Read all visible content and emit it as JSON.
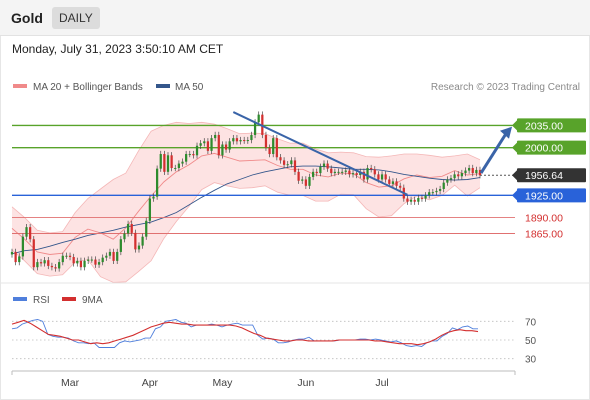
{
  "header": {
    "title": "Gold",
    "period_badge": "DAILY"
  },
  "timestamp": "Monday, July 31, 2023 3:50:10 AM CET",
  "colors": {
    "bollinger": "#f08a8a",
    "bollinger_fill": "#fde3e3",
    "ma50": "#34568b",
    "resistance": "#58a32a",
    "support": "#2962d9",
    "pivot": "#333333",
    "support_thin": "#e07070",
    "candle_up": "#2e8b2e",
    "candle_down": "#d32f2f",
    "rsi": "#4f7fdc",
    "rsi_ma": "#d32f2f",
    "arrow": "#3a64a8"
  },
  "chart_data": [
    {
      "type": "candlestick",
      "title": "Gold",
      "period": "DAILY",
      "legend": [
        {
          "label": "MA 20 + Bollinger Bands",
          "color": "#f08a8a"
        },
        {
          "label": "MA 50",
          "color": "#34568b"
        }
      ],
      "legend_position": "top-left",
      "credit": "Research © 2023 Trading Central",
      "x_ticks": [
        {
          "label": "Mar",
          "index": 16
        },
        {
          "label": "Apr",
          "index": 38
        },
        {
          "label": "May",
          "index": 58
        },
        {
          "label": "Jun",
          "index": 81
        },
        {
          "label": "Jul",
          "index": 102
        }
      ],
      "ylim": [
        1795,
        2075
      ],
      "close": [
        1836,
        1820,
        1829,
        1860,
        1875,
        1856,
        1812,
        1820,
        1818,
        1823,
        1814,
        1812,
        1810,
        1820,
        1830,
        1830,
        1828,
        1818,
        1822,
        1812,
        1822,
        1824,
        1824,
        1816,
        1820,
        1827,
        1830,
        1836,
        1822,
        1836,
        1856,
        1865,
        1880,
        1866,
        1840,
        1846,
        1860,
        1885,
        1920,
        1923,
        1967,
        1990,
        1962,
        1988,
        1968,
        1968,
        1975,
        1978,
        1990,
        1990,
        1988,
        2003,
        2007,
        2010,
        1995,
        2015,
        2020,
        1988,
        2005,
        1997,
        2010,
        2015,
        2010,
        2012,
        2011,
        2012,
        2020,
        2040,
        2052,
        2020,
        2000,
        1990,
        2015,
        1985,
        1980,
        1973,
        1974,
        1980,
        1962,
        1948,
        1950,
        1940,
        1954,
        1962,
        1960,
        1970,
        1975,
        1967,
        1960,
        1962,
        1962,
        1962,
        1964,
        1958,
        1960,
        1957,
        1962,
        1950,
        1968,
        1966,
        1958,
        1950,
        1958,
        1950,
        1943,
        1947,
        1940,
        1937,
        1920,
        1915,
        1918,
        1915,
        1921,
        1920,
        1925,
        1930,
        1930,
        1932,
        1935,
        1945,
        1950,
        1952,
        1958,
        1955,
        1960,
        1964,
        1968,
        1960,
        1965,
        1956.64
      ],
      "series": [
        {
          "name": "MA 20 + Bollinger Bands",
          "mid": [
            1873,
            1856,
            1836,
            1832,
            1834,
            1859,
            1872,
            1866,
            1856,
            1874,
            1900,
            1924,
            1946,
            1962,
            1973,
            1987,
            1991,
            1985,
            1979,
            1980,
            1981,
            1972,
            1966,
            1966,
            1957,
            1954,
            1960,
            1959,
            1945,
            1938,
            1940,
            1951,
            1957,
            1953,
            1955,
            1964,
            1957,
            1959
          ],
          "upper": [
            1907,
            1890,
            1870,
            1866,
            1868,
            1898,
            1920,
            1935,
            1950,
            1960,
            1995,
            2026,
            2035,
            2040,
            2038,
            2040,
            2037,
            2030,
            2022,
            2023,
            2022,
            2014,
            2007,
            2007,
            1998,
            1992,
            1993,
            1992,
            1986,
            1985,
            1987,
            1990,
            1990,
            1988,
            1985,
            1987,
            1990,
            1981
          ],
          "lower": [
            1839,
            1822,
            1802,
            1798,
            1800,
            1820,
            1824,
            1797,
            1788,
            1789,
            1805,
            1822,
            1857,
            1884,
            1908,
            1934,
            1945,
            1940,
            1936,
            1937,
            1940,
            1930,
            1925,
            1925,
            1916,
            1916,
            1927,
            1926,
            1904,
            1891,
            1893,
            1912,
            1924,
            1918,
            1925,
            1941,
            1924,
            1937
          ]
        },
        {
          "name": "MA 50",
          "values": [
            1833,
            1838,
            1840,
            1845,
            1851,
            1856,
            1862,
            1866,
            1870,
            1875,
            1879,
            1883,
            1890,
            1898,
            1910,
            1922,
            1933,
            1943,
            1950,
            1957,
            1962,
            1966,
            1970,
            1971,
            1971,
            1970,
            1968,
            1966,
            1966,
            1965,
            1962,
            1958,
            1955,
            1952,
            1950,
            1949,
            1950,
            1953
          ]
        }
      ],
      "levels": [
        {
          "label": "2035.00",
          "value": 2035,
          "color": "#58a32a"
        },
        {
          "label": "2000.00",
          "value": 2000,
          "color": "#58a32a"
        },
        {
          "label": "1956.64",
          "value": 1956.64,
          "color": "#333333"
        },
        {
          "label": "1925.00",
          "value": 1925,
          "color": "#2962d9"
        },
        {
          "label": "1890.00",
          "value": 1890,
          "color": "#e07070"
        },
        {
          "label": "1865.00",
          "value": 1865,
          "color": "#e07070"
        }
      ],
      "trendline": {
        "from": {
          "index": 61,
          "value": 2056
        },
        "to": {
          "index": 109,
          "value": 1926
        }
      }
    },
    {
      "type": "line",
      "legend": [
        {
          "label": "RSI",
          "color": "#4f7fdc"
        },
        {
          "label": "9MA",
          "color": "#d32f2f"
        }
      ],
      "ylim": [
        20,
        80
      ],
      "y_ticks": [
        "70",
        "50",
        "30"
      ],
      "series": [
        {
          "name": "RSI",
          "values": [
            62,
            63,
            67,
            69,
            71,
            72,
            70,
            56,
            54,
            53,
            53,
            52,
            49,
            47,
            47,
            46,
            47,
            42,
            42,
            42,
            42,
            47,
            49,
            48,
            49,
            50,
            52,
            52,
            62,
            64,
            70,
            71,
            72,
            69,
            68,
            64,
            66,
            66,
            66,
            67,
            66,
            64,
            66,
            67,
            68,
            66,
            66,
            66,
            55,
            51,
            52,
            51,
            47,
            47,
            48,
            50,
            51,
            51,
            53,
            49,
            49,
            49,
            49,
            49,
            50,
            50,
            50,
            50,
            51,
            51,
            50,
            51,
            50,
            49,
            48,
            49,
            47,
            44,
            43,
            44,
            43,
            47,
            49,
            49,
            54,
            57,
            63,
            61,
            64,
            65,
            62,
            62
          ]
        },
        {
          "name": "9MA",
          "values": [
            67,
            69,
            71,
            68,
            64,
            60,
            56,
            55,
            54,
            52,
            50,
            50,
            48,
            46,
            47,
            46,
            47,
            49,
            51,
            53,
            55,
            58,
            61,
            64,
            66,
            68,
            69,
            68,
            67,
            67,
            66,
            66,
            66,
            66,
            66,
            66,
            66,
            65,
            63,
            60,
            57,
            55,
            52,
            51,
            50,
            49,
            49,
            50,
            50,
            49,
            49,
            49,
            49,
            49,
            50,
            50,
            50,
            50,
            50,
            50,
            49,
            49,
            48,
            47,
            46,
            46,
            46,
            45,
            46,
            48,
            51,
            55,
            58,
            60,
            61,
            60,
            60,
            59
          ]
        }
      ]
    }
  ]
}
